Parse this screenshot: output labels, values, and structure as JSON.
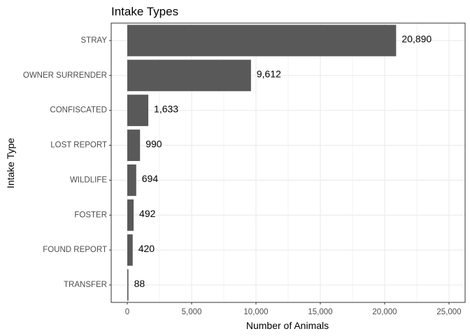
{
  "chart_data": {
    "type": "bar",
    "orientation": "horizontal",
    "title": "Intake Types",
    "xlabel": "Number of Animals",
    "ylabel": "Intake Type",
    "categories": [
      "STRAY",
      "OWNER SURRENDER",
      "CONFISCATED",
      "LOST REPORT",
      "WILDLIFE",
      "FOSTER",
      "FOUND REPORT",
      "TRANSFER"
    ],
    "values": [
      20890,
      9612,
      1633,
      990,
      694,
      492,
      420,
      88
    ],
    "data_labels": [
      "20,890",
      "9,612",
      "1,633",
      "990",
      "694",
      "492",
      "420",
      "88"
    ],
    "xlim": [
      -1250,
      26250
    ],
    "x_ticks": [
      0,
      5000,
      10000,
      15000,
      20000,
      25000
    ],
    "x_tick_labels": [
      "0",
      "5,000",
      "10,000",
      "15,000",
      "20,000",
      "25,000"
    ],
    "bar_color": "#595959",
    "grid": true,
    "grid_color": "#ebebeb",
    "panel_border_color": "#333333",
    "legend": "none"
  }
}
